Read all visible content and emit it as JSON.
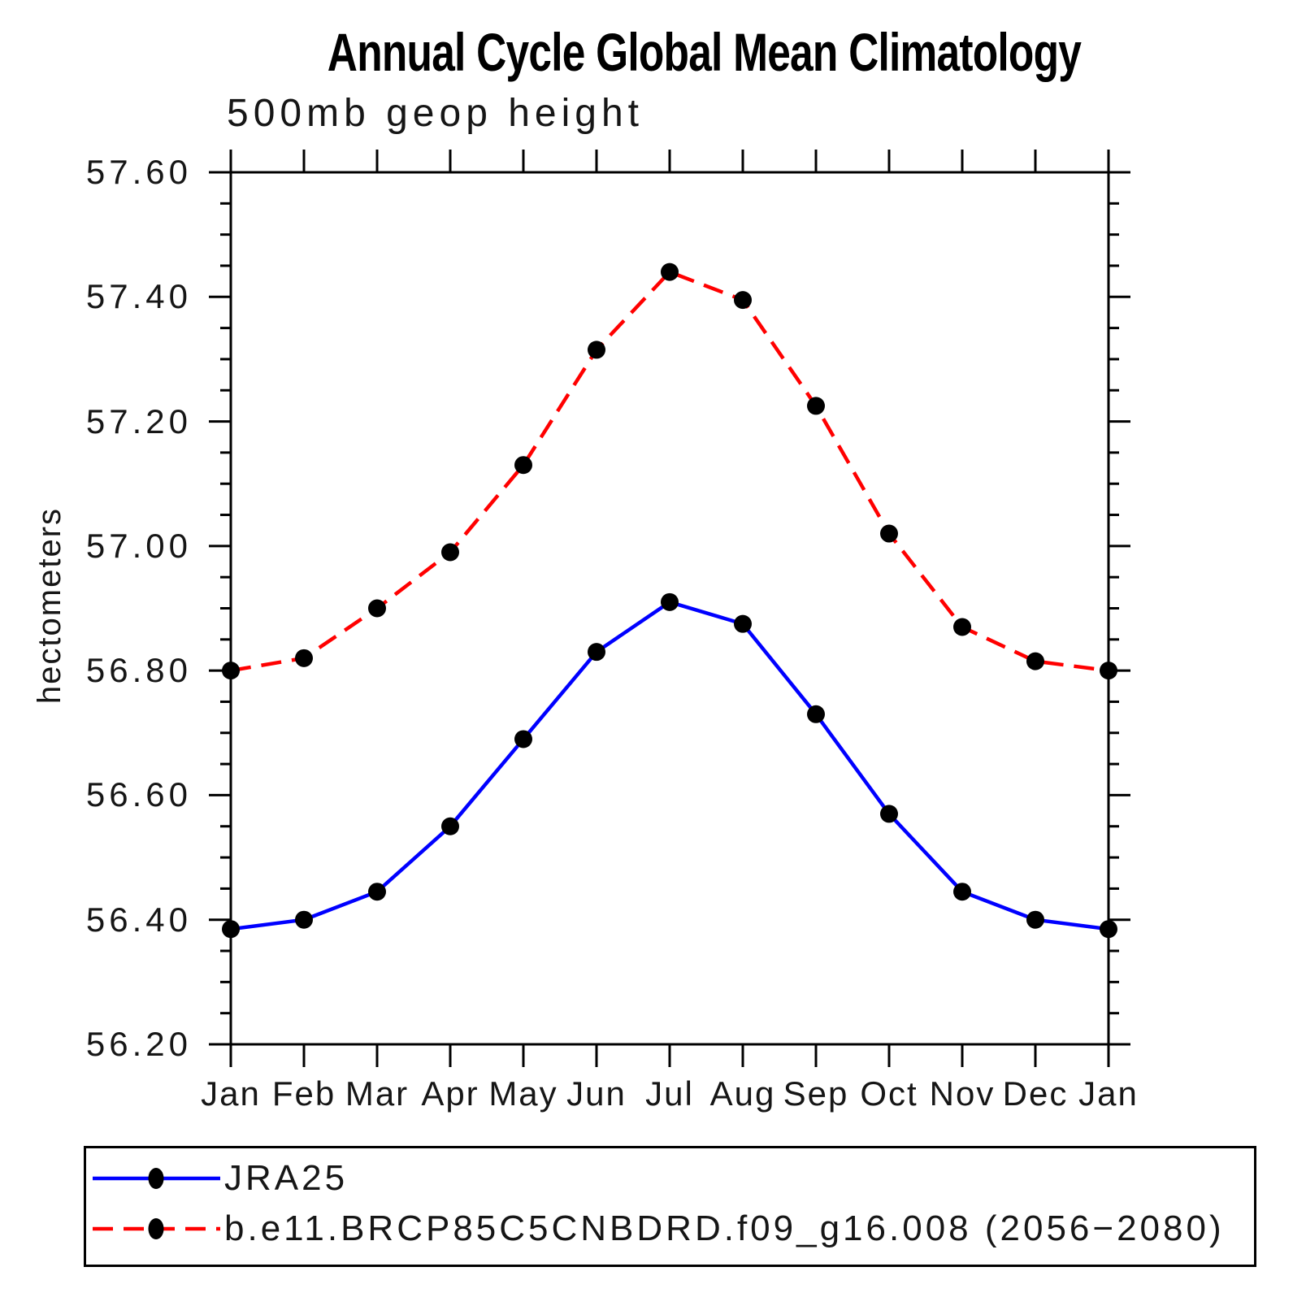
{
  "title": "Annual Cycle Global Mean Climatology",
  "subtitle": "500mb geop height",
  "chart_data": {
    "type": "line",
    "title": "Annual Cycle Global Mean Climatology",
    "subtitle": "500mb geop height",
    "x_categories": [
      "Jan",
      "Feb",
      "Mar",
      "Apr",
      "May",
      "Jun",
      "Jul",
      "Aug",
      "Sep",
      "Oct",
      "Nov",
      "Dec",
      "Jan"
    ],
    "ylabel": "hectometers",
    "ylim": [
      56.2,
      57.6
    ],
    "ytick_labels": [
      "56.20",
      "56.40",
      "56.60",
      "56.80",
      "57.00",
      "57.20",
      "57.40",
      "57.60"
    ],
    "ytick_interval": 0.2,
    "minor_ticks_per_major": 3,
    "grid": false,
    "legend_position": "bottom-left-box",
    "marker": "filled-circle",
    "marker_color": "#000000",
    "series": [
      {
        "name": "JRA25",
        "color": "#0000FF",
        "line_style": "solid",
        "values": [
          56.385,
          56.4,
          56.445,
          56.55,
          56.69,
          56.83,
          56.91,
          56.875,
          56.73,
          56.57,
          56.445,
          56.4,
          56.385
        ]
      },
      {
        "name": "b.e11.BRCP85C5CNBDRD.f09_g16.008 (2056−2080)",
        "color": "#FF0000",
        "line_style": "dashed",
        "values": [
          56.8,
          56.82,
          56.9,
          56.99,
          57.13,
          57.315,
          57.44,
          57.395,
          57.225,
          57.02,
          56.87,
          56.815,
          56.8
        ]
      }
    ]
  }
}
